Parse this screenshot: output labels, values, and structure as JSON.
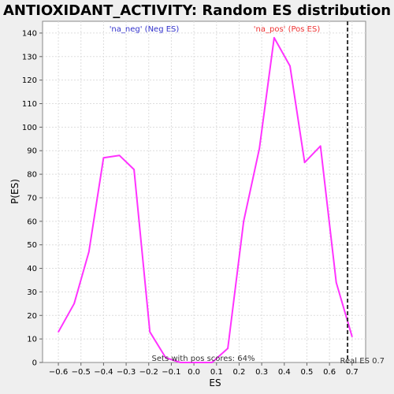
{
  "chart_data": {
    "type": "line",
    "title": "ANTIOXIDANT_ACTIVITY: Random ES distribution",
    "xlabel": "ES",
    "ylabel": "P(ES)",
    "xlim": [
      -0.67,
      0.76
    ],
    "ylim": [
      0,
      145
    ],
    "x_ticks": [
      "-0.6",
      "-0.5",
      "-0.4",
      "-0.3",
      "-0.2",
      "-0.1",
      "0.0",
      "0.1",
      "0.2",
      "0.3",
      "0.4",
      "0.5",
      "0.6",
      "0.7"
    ],
    "y_ticks": [
      "0",
      "10",
      "20",
      "30",
      "40",
      "50",
      "60",
      "70",
      "80",
      "90",
      "100",
      "110",
      "120",
      "130",
      "140"
    ],
    "grid": true,
    "series": [
      {
        "color": "#ff33ff",
        "x": [
          -0.6,
          -0.53,
          -0.465,
          -0.4,
          -0.33,
          -0.265,
          -0.195,
          -0.125,
          -0.06,
          0.01,
          0.08,
          0.15,
          0.22,
          0.29,
          0.355,
          0.425,
          0.49,
          0.56,
          0.63,
          0.7
        ],
        "y": [
          13,
          25,
          47,
          87,
          88,
          82,
          13,
          2,
          0,
          0,
          0,
          6,
          60,
          91,
          138,
          126,
          85,
          92,
          34,
          11
        ]
      }
    ],
    "real_es": {
      "value": 0.68,
      "label": "Real ES 0.7",
      "color": "#333333"
    },
    "annotations": [
      {
        "id": "neg",
        "text": "'na_neg' (Neg ES)",
        "color": "#3333cc"
      },
      {
        "id": "pos",
        "text": "'na_pos' (Pos ES)",
        "color": "#ee3333"
      },
      {
        "id": "sets",
        "text": "Sets with pos scores: 64%",
        "color": "#333333"
      }
    ]
  }
}
